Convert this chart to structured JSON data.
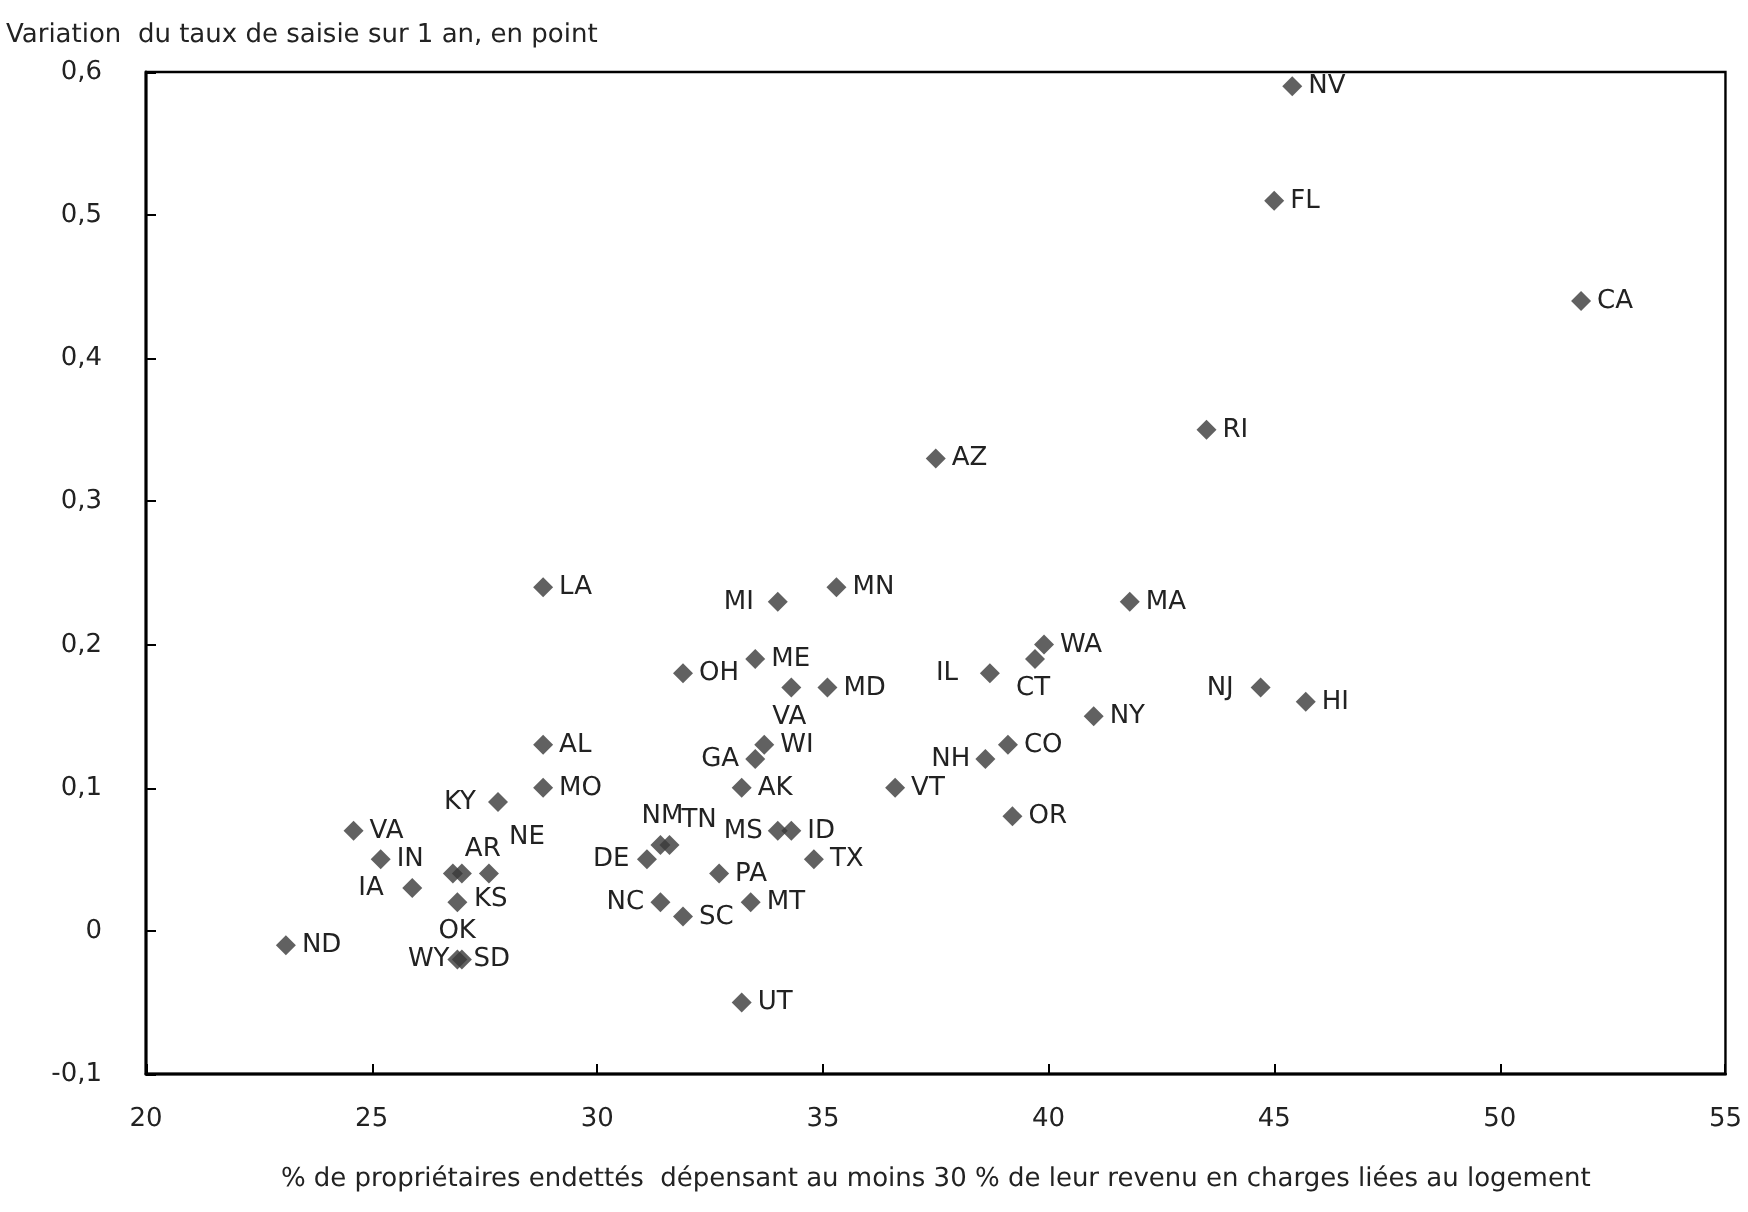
{
  "chart_data": {
    "type": "scatter",
    "ylabel": "Variation  du taux de saisie sur 1 an, en point",
    "xlabel": "% de propriétaires endettés  dépensant au moins 30 % de leur revenu en charges liées au logement",
    "x": [
      45.4,
      45.0,
      51.8,
      43.5,
      37.5,
      41.8,
      39.9,
      39.7,
      38.7,
      44.7,
      45.7,
      41.0,
      39.1,
      38.6,
      36.6,
      39.2,
      35.3,
      34.0,
      31.9,
      33.5,
      34.3,
      35.1,
      33.7,
      33.5,
      33.2,
      34.0,
      34.3,
      34.8,
      32.7,
      33.4,
      31.4,
      31.9,
      31.4,
      31.6,
      31.1,
      33.2,
      28.8,
      28.8,
      28.8,
      27.8,
      24.6,
      25.2,
      25.9,
      26.8,
      27.0,
      27.6,
      26.9,
      26.9,
      27.0,
      23.1
    ],
    "series": [
      {
        "color": "#3a3a3a",
        "values": [
          0.59,
          0.51,
          0.44,
          0.35,
          0.33,
          0.23,
          0.2,
          0.19,
          0.18,
          0.17,
          0.16,
          0.15,
          0.13,
          0.12,
          0.1,
          0.08,
          0.24,
          0.23,
          0.18,
          0.19,
          0.17,
          0.17,
          0.13,
          0.12,
          0.1,
          0.07,
          0.07,
          0.05,
          0.04,
          0.02,
          0.02,
          0.01,
          0.06,
          0.06,
          0.05,
          -0.05,
          0.24,
          0.13,
          0.1,
          0.09,
          0.07,
          0.05,
          0.03,
          0.04,
          0.04,
          0.04,
          0.02,
          -0.02,
          -0.02,
          -0.01
        ]
      }
    ],
    "marker": "diamond",
    "grid": false,
    "xlim": [
      20,
      55
    ],
    "xticks": [
      20,
      25,
      30,
      35,
      40,
      45,
      50,
      55
    ],
    "ylim": [
      -0.1,
      0.6
    ],
    "yticks": [
      {
        "value": -0.1,
        "label": "-0,1"
      },
      0,
      {
        "value": 0.1,
        "label": "0,1"
      },
      {
        "value": 0.2,
        "label": "0,2"
      },
      {
        "value": 0.3,
        "label": "0,3"
      },
      {
        "value": 0.4,
        "label": "0,4"
      },
      {
        "value": 0.5,
        "label": "0,5"
      },
      {
        "value": 0.6,
        "label": "0,6"
      }
    ],
    "annotations": [
      {
        "text": "NV",
        "x": 45.4,
        "y": 0.59
      },
      {
        "text": "FL",
        "x": 45.0,
        "y": 0.51
      },
      {
        "text": "CA",
        "x": 51.8,
        "y": 0.44
      },
      {
        "text": "RI",
        "x": 43.5,
        "y": 0.35
      },
      {
        "text": "AZ",
        "x": 37.5,
        "y": 0.33
      },
      {
        "text": "MA",
        "x": 41.8,
        "y": 0.23
      },
      {
        "text": "WA",
        "x": 39.9,
        "y": 0.2
      },
      {
        "text": "CT",
        "x": 39.7,
        "y": 0.19
      },
      {
        "text": "IL",
        "x": 38.7,
        "y": 0.18
      },
      {
        "text": "NJ",
        "x": 44.7,
        "y": 0.17
      },
      {
        "text": "HI",
        "x": 45.7,
        "y": 0.16
      },
      {
        "text": "NY",
        "x": 41.0,
        "y": 0.15
      },
      {
        "text": "CO",
        "x": 39.1,
        "y": 0.13
      },
      {
        "text": "NH",
        "x": 38.6,
        "y": 0.12
      },
      {
        "text": "VT",
        "x": 36.6,
        "y": 0.1
      },
      {
        "text": "OR",
        "x": 39.2,
        "y": 0.08
      },
      {
        "text": "MN",
        "x": 35.3,
        "y": 0.24
      },
      {
        "text": "MI",
        "x": 34.0,
        "y": 0.23
      },
      {
        "text": "OH",
        "x": 31.9,
        "y": 0.18
      },
      {
        "text": "ME",
        "x": 33.5,
        "y": 0.19
      },
      {
        "text": "VA",
        "x": 34.3,
        "y": 0.17
      },
      {
        "text": "MD",
        "x": 35.1,
        "y": 0.17
      },
      {
        "text": "WI",
        "x": 33.7,
        "y": 0.13
      },
      {
        "text": "GA",
        "x": 33.5,
        "y": 0.12
      },
      {
        "text": "AK",
        "x": 33.2,
        "y": 0.1
      },
      {
        "text": "MS",
        "x": 34.0,
        "y": 0.07
      },
      {
        "text": "ID",
        "x": 34.3,
        "y": 0.07
      },
      {
        "text": "TX",
        "x": 34.8,
        "y": 0.05
      },
      {
        "text": "PA",
        "x": 32.7,
        "y": 0.04
      },
      {
        "text": "MT",
        "x": 33.4,
        "y": 0.02
      },
      {
        "text": "NC",
        "x": 31.4,
        "y": 0.02
      },
      {
        "text": "SC",
        "x": 31.9,
        "y": 0.01
      },
      {
        "text": "NM",
        "x": 31.4,
        "y": 0.06
      },
      {
        "text": "TN",
        "x": 31.6,
        "y": 0.06
      },
      {
        "text": "DE",
        "x": 31.1,
        "y": 0.05
      },
      {
        "text": "UT",
        "x": 33.2,
        "y": -0.05
      },
      {
        "text": "LA",
        "x": 28.8,
        "y": 0.24
      },
      {
        "text": "AL",
        "x": 28.8,
        "y": 0.13
      },
      {
        "text": "MO",
        "x": 28.8,
        "y": 0.1
      },
      {
        "text": "KY",
        "x": 27.8,
        "y": 0.09
      },
      {
        "text": "VA",
        "x": 24.6,
        "y": 0.07
      },
      {
        "text": "IN",
        "x": 25.2,
        "y": 0.05
      },
      {
        "text": "IA",
        "x": 25.9,
        "y": 0.03
      },
      {
        "text": "AR",
        "x": 26.8,
        "y": 0.04
      },
      {
        "text": "KS",
        "x": 27.0,
        "y": 0.04
      },
      {
        "text": "NE",
        "x": 27.6,
        "y": 0.04
      },
      {
        "text": "OK",
        "x": 26.9,
        "y": 0.02
      },
      {
        "text": "SD",
        "x": 26.9,
        "y": -0.02
      },
      {
        "text": "WY",
        "x": 27.0,
        "y": -0.02
      },
      {
        "text": "ND",
        "x": 23.1,
        "y": -0.01
      }
    ]
  }
}
